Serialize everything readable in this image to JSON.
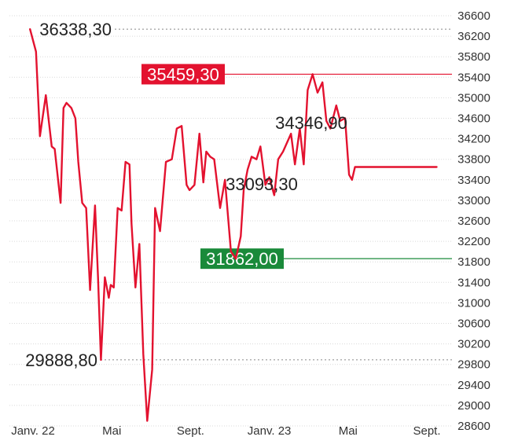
{
  "chart_data": {
    "type": "line",
    "title": "",
    "xlabel": "",
    "ylabel": "",
    "ylim": [
      28600,
      36600
    ],
    "y_ticks": [
      36600,
      36200,
      35800,
      35400,
      35000,
      34600,
      34200,
      33800,
      33400,
      33000,
      32600,
      32200,
      31800,
      31400,
      31000,
      30600,
      30200,
      29800,
      29400,
      29000,
      28600
    ],
    "y_tick_labels": [
      "36600",
      "36200",
      "35800",
      "35400",
      "35000",
      "34600",
      "34200",
      "33800",
      "33400",
      "33000",
      "32600",
      "32200",
      "31800",
      "31400",
      "31000",
      "30600",
      "30200",
      "29800",
      "29400",
      "29000",
      "28600"
    ],
    "x_tick_labels": [
      {
        "label": "Janv. 22",
        "t": 0
      },
      {
        "label": "Mai",
        "t": 4
      },
      {
        "label": "Sept.",
        "t": 8
      },
      {
        "label": "Janv. 23",
        "t": 12
      },
      {
        "label": "Mai",
        "t": 16
      },
      {
        "label": "Sept.",
        "t": 20
      }
    ],
    "series_color": "#e3122f",
    "grid": "dotted-horizontal",
    "reference_lines": [
      {
        "value": 36338.3,
        "label": "36338,30",
        "style": "dotted",
        "color": "#888888"
      },
      {
        "value": 35459.3,
        "label": "35459,30",
        "style": "solid",
        "color": "#e3122f",
        "badge": true
      },
      {
        "value": 31862.0,
        "label": "31862,00",
        "style": "solid",
        "color": "#1a8a3a",
        "badge": true
      },
      {
        "value": 29888.8,
        "label": "29888,80",
        "style": "dotted",
        "color": "#888888"
      }
    ],
    "annotations": [
      {
        "label": "34346,90",
        "t": 14.2,
        "value": 34346.9
      },
      {
        "label": "33093,30",
        "t": 10.6,
        "value": 33093.3
      }
    ],
    "series": [
      {
        "t": [
          -0.15,
          0.15,
          0.35,
          0.65,
          0.95,
          1.1,
          1.4,
          1.55,
          1.7,
          1.95,
          2.15,
          2.3,
          2.5,
          2.7,
          2.9,
          3.15,
          3.3,
          3.45,
          3.65,
          3.85,
          3.95,
          4.1,
          4.3,
          4.5,
          4.7,
          4.9,
          5.0,
          5.2,
          5.4,
          5.6,
          5.8,
          6.05,
          6.2,
          6.45,
          6.75,
          7.05,
          7.3,
          7.55,
          7.8,
          7.95,
          8.2,
          8.45,
          8.65,
          8.8,
          9.0,
          9.2,
          9.5,
          9.75,
          10.05,
          10.3,
          10.55,
          10.7,
          10.9,
          11.1,
          11.35,
          11.55,
          11.8,
          12.0,
          12.25,
          12.45,
          12.7,
          13.1,
          13.3,
          13.55,
          13.75,
          13.95,
          14.2,
          14.45,
          14.7,
          14.9,
          15.1,
          15.4,
          15.6,
          15.85,
          16.05,
          16.2,
          16.35,
          16.6,
          16.8,
          17.1,
          17.3,
          17.55,
          17.8,
          18.05,
          18.2,
          18.45,
          18.6,
          18.75,
          18.95,
          19.2,
          19.5,
          19.7,
          19.95,
          20.15,
          20.35,
          20.5
        ],
        "values": [
          36338.3,
          35900,
          34250,
          35050,
          34050,
          34000,
          32950,
          34800,
          34900,
          34800,
          34600,
          33750,
          32950,
          32850,
          31250,
          32900,
          31500,
          29888.8,
          31500,
          31100,
          31350,
          31300,
          32850,
          32800,
          33750,
          33700,
          32550,
          31300,
          32150,
          30000,
          28700,
          29700,
          32850,
          32400,
          33750,
          33800,
          34400,
          34450,
          33300,
          33200,
          33300,
          34300,
          33350,
          33950,
          33850,
          33800,
          32850,
          33400,
          32000,
          31862,
          32300,
          33200,
          33600,
          33850,
          33800,
          34050,
          33300,
          33450,
          33100,
          33800,
          33950,
          34300,
          33700,
          34400,
          33700,
          35150,
          35459.3,
          35100,
          35300,
          34550,
          34400,
          34850,
          34550,
          34600,
          33500,
          33400,
          33650,
          33650,
          33650,
          33650,
          33650,
          33650,
          33650,
          33650,
          33650,
          33650,
          33650,
          33650,
          33650,
          33650,
          33650,
          33650,
          33650,
          33650,
          33650,
          33650
        ]
      }
    ]
  }
}
